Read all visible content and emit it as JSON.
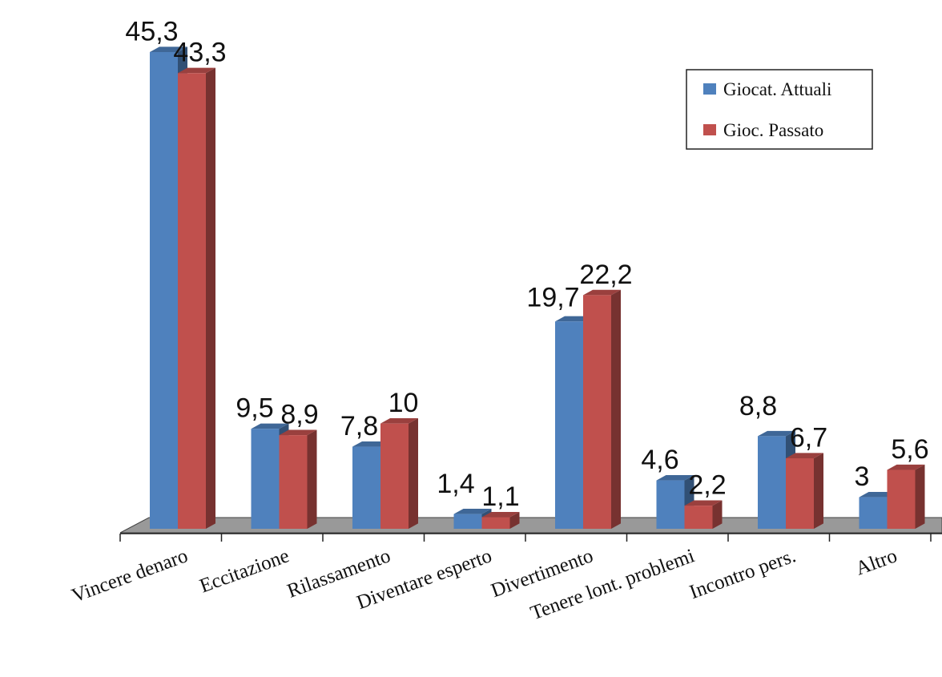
{
  "chart_data": {
    "type": "bar",
    "title": "",
    "xlabel": "",
    "ylabel": "",
    "categories": [
      "Vincere denaro",
      "Eccitazione",
      "Rilassamento",
      "Diventare esperto",
      "Divertimento",
      "Tenere lont. problemi",
      "Incontro pers.",
      "Altro"
    ],
    "series": [
      {
        "name": "Giocat. Attuali",
        "values": [
          45.3,
          9.5,
          7.8,
          1.4,
          19.7,
          4.6,
          8.8,
          3
        ],
        "value_labels": [
          "45,3",
          "9,5",
          "7,8",
          "1,4",
          "19,7",
          "4,6",
          "8,8",
          "3"
        ],
        "color": "#4F81BD"
      },
      {
        "name": "Gioc. Passato",
        "values": [
          43.3,
          8.9,
          10,
          1.1,
          22.2,
          2.2,
          6.7,
          5.6
        ],
        "value_labels": [
          "43,3",
          "8,9",
          "10",
          "1,1",
          "22,2",
          "2,2",
          "6,7",
          "5,6"
        ],
        "color": "#C0504D"
      }
    ],
    "ylim": [
      0,
      45.3
    ],
    "grid": false,
    "legend_position": "top-right",
    "style": "3d-clustered-column"
  }
}
